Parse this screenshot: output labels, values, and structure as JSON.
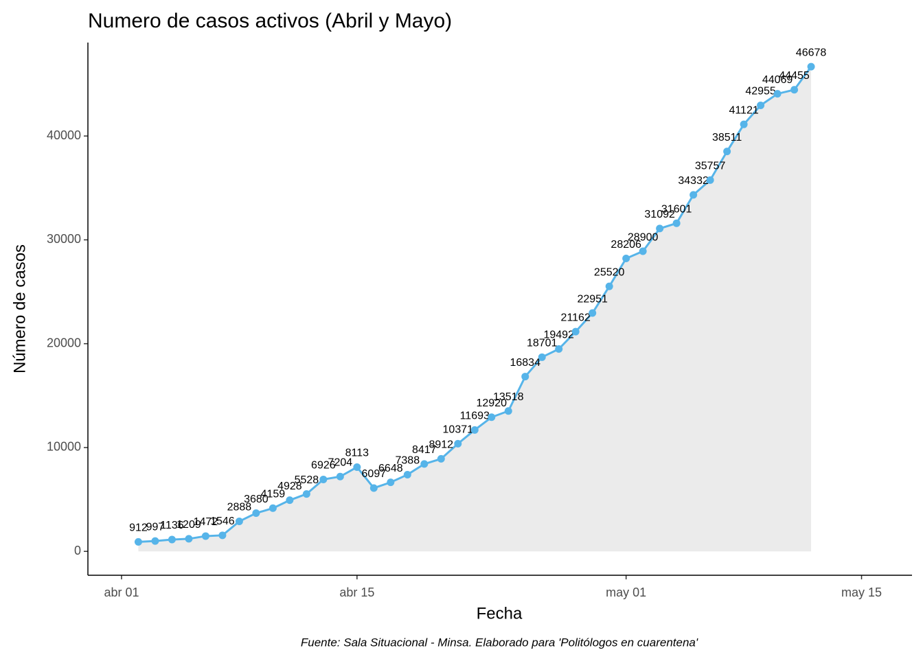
{
  "chart_data": {
    "type": "line",
    "title": "Numero de casos activos (Abril y Mayo)",
    "x_label": "Fecha",
    "y_label": "Número de casos",
    "caption": "Fuente: Sala Situacional - Minsa. Elaborado para 'Politólogos en cuarentena'",
    "x": [
      "04-02",
      "04-03",
      "04-04",
      "04-05",
      "04-06",
      "04-07",
      "04-08",
      "04-09",
      "04-10",
      "04-11",
      "04-12",
      "04-13",
      "04-14",
      "04-15",
      "04-16",
      "04-17",
      "04-18",
      "04-19",
      "04-20",
      "04-21",
      "04-22",
      "04-23",
      "04-24",
      "04-25",
      "04-26",
      "04-27",
      "04-28",
      "04-29",
      "04-30",
      "05-01",
      "05-02",
      "05-03",
      "05-04",
      "05-05",
      "05-06",
      "05-07",
      "05-08",
      "05-09",
      "05-10",
      "05-11",
      "05-12"
    ],
    "series": [
      {
        "name": "Casos activos",
        "color": "#56b4e9",
        "area_color": "#ebebeb",
        "values": [
          912,
          997,
          1136,
          1209,
          1472,
          1546,
          2888,
          3680,
          4159,
          4928,
          5528,
          6926,
          7204,
          8113,
          6097,
          6648,
          7388,
          8417,
          8912,
          10371,
          11693,
          12920,
          13518,
          16834,
          18701,
          19492,
          21162,
          22951,
          25520,
          28206,
          28900,
          31092,
          31601,
          34332,
          35757,
          38511,
          41121,
          42955,
          44069,
          44455,
          46678
        ]
      }
    ],
    "xlim": [
      "03-30",
      "05-18"
    ],
    "xticks": [
      {
        "value": "04-01",
        "label": "abr 01"
      },
      {
        "value": "04-15",
        "label": "abr 15"
      },
      {
        "value": "05-01",
        "label": "may 01"
      },
      {
        "value": "05-15",
        "label": "may 15"
      }
    ],
    "ylim": [
      -2300,
      49000
    ],
    "yticks": [
      0,
      10000,
      20000,
      30000,
      40000
    ],
    "grid": false
  }
}
